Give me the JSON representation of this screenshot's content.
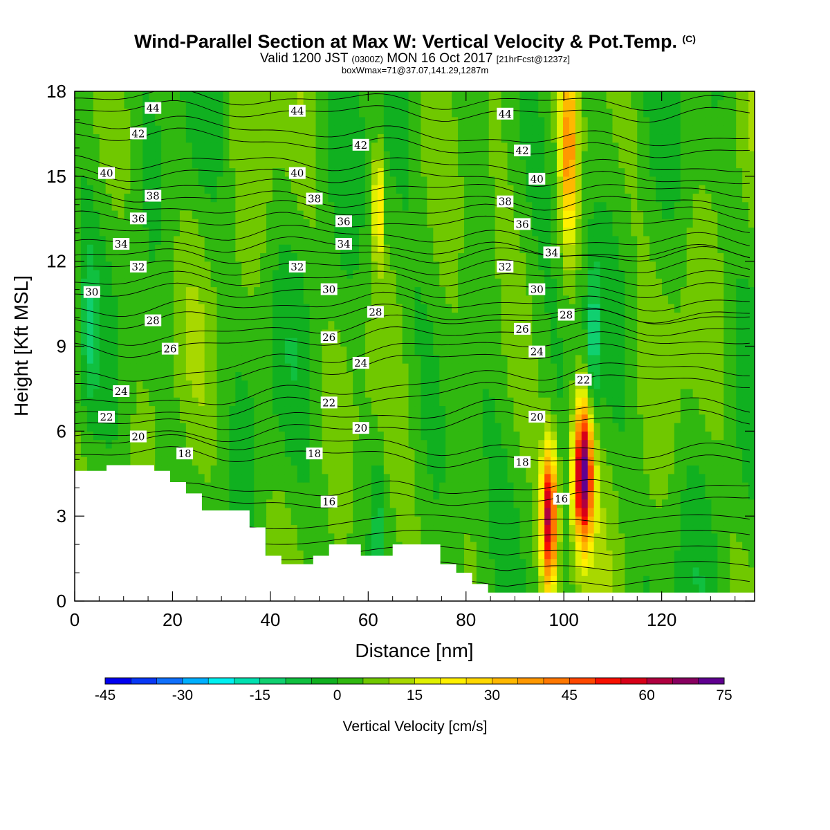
{
  "header": {
    "title": "Wind-Parallel Section at Max W: Vertical Velocity & Pot.Temp.",
    "title_mark": "(C)",
    "valid_prefix": "Valid 1200 JST",
    "valid_utc": "(0300Z)",
    "valid_date": "MON 16 Oct 2017",
    "valid_fcst": "[21hrFcst@1237z]",
    "box_info": "boxWmax=71@37.07,141.29,1287m"
  },
  "chart_data": {
    "type": "heatmap",
    "xlabel": "Distance [nm]",
    "ylabel": "Height [Kft MSL]",
    "xlim": [
      0,
      139
    ],
    "ylim": [
      0,
      18
    ],
    "x_ticks": [
      "0",
      "20",
      "40",
      "60",
      "80",
      "100",
      "120"
    ],
    "y_ticks": [
      "0",
      "3",
      "6",
      "9",
      "12",
      "15",
      "18"
    ],
    "colorbar": {
      "label": "Vertical Velocity [cm/s]",
      "min": -45,
      "max": 75,
      "step": 5,
      "tick_labels": [
        "-45",
        "-30",
        "-15",
        "0",
        "15",
        "30",
        "45",
        "60",
        "75"
      ],
      "colors": [
        "#0000f0",
        "#0838f6",
        "#1070fc",
        "#00b0ff",
        "#00f0f0",
        "#00e0b0",
        "#10d070",
        "#10c040",
        "#10b020",
        "#30b810",
        "#70c800",
        "#a8d800",
        "#e0f000",
        "#fff000",
        "#ffd800",
        "#ffb800",
        "#ff9800",
        "#ff7800",
        "#ff4800",
        "#f81000",
        "#d80018",
        "#b00040",
        "#880060",
        "#600090"
      ]
    },
    "vertical_velocity_features": [
      {
        "x": 97,
        "height": 3.0,
        "max_cm_s": 60,
        "sign": "up"
      },
      {
        "x": 104,
        "height": 4.5,
        "max_cm_s": 71,
        "sign": "up"
      },
      {
        "x": 62,
        "height": 14.0,
        "max_cm_s": 30,
        "sign": "up"
      },
      {
        "x": 101,
        "height": 16.0,
        "max_cm_s": 35,
        "sign": "up"
      },
      {
        "x": 106,
        "height": 9.0,
        "max_cm_s": -15,
        "sign": "down"
      },
      {
        "x": 3,
        "height": 9.5,
        "max_cm_s": -10,
        "sign": "down"
      },
      {
        "x": 62,
        "height": 3.0,
        "max_cm_s": -10,
        "sign": "down"
      }
    ],
    "terrain": {
      "x": [
        0,
        3.25,
        6.5,
        6.5,
        16.25,
        16.25,
        19.5,
        19.5,
        22.75,
        22.75,
        26,
        26,
        29.25,
        29.25,
        35.75,
        35.75,
        39,
        39,
        42.25,
        42.25,
        48.75,
        48.75,
        52,
        52,
        58.5,
        58.5,
        65,
        65,
        74.75,
        74.75,
        78,
        78,
        81.25,
        81.25,
        84.5,
        84.5,
        139
      ],
      "height": [
        4.6,
        4.6,
        4.6,
        4.8,
        4.8,
        4.6,
        4.6,
        4.2,
        4.2,
        3.8,
        3.8,
        3.2,
        3.2,
        3.2,
        3.2,
        2.6,
        2.6,
        1.6,
        1.6,
        1.3,
        1.3,
        1.6,
        1.6,
        2.0,
        2.0,
        1.6,
        1.6,
        2.0,
        2.0,
        1.3,
        1.3,
        1.0,
        1.0,
        0.6,
        0.6,
        0.3,
        0.3
      ]
    },
    "theta_contour_labels": [
      {
        "label": "44",
        "x": 16,
        "y": 17.4
      },
      {
        "label": "44",
        "x": 45.5,
        "y": 17.3
      },
      {
        "label": "44",
        "x": 88,
        "y": 17.2
      },
      {
        "label": "42",
        "x": 13,
        "y": 16.5
      },
      {
        "label": "42",
        "x": 58.5,
        "y": 16.1
      },
      {
        "label": "42",
        "x": 91.5,
        "y": 15.9
      },
      {
        "label": "40",
        "x": 6.5,
        "y": 15.1
      },
      {
        "label": "40",
        "x": 45.5,
        "y": 15.1
      },
      {
        "label": "40",
        "x": 94.5,
        "y": 14.9
      },
      {
        "label": "38",
        "x": 16,
        "y": 14.3
      },
      {
        "label": "38",
        "x": 49,
        "y": 14.2
      },
      {
        "label": "38",
        "x": 88,
        "y": 14.1
      },
      {
        "label": "36",
        "x": 13,
        "y": 13.5
      },
      {
        "label": "36",
        "x": 55,
        "y": 13.4
      },
      {
        "label": "36",
        "x": 91.5,
        "y": 13.3
      },
      {
        "label": "34",
        "x": 9.5,
        "y": 12.6
      },
      {
        "label": "34",
        "x": 55,
        "y": 12.6
      },
      {
        "label": "34",
        "x": 97.5,
        "y": 12.3
      },
      {
        "label": "32",
        "x": 13,
        "y": 11.8
      },
      {
        "label": "32",
        "x": 45.5,
        "y": 11.8
      },
      {
        "label": "32",
        "x": 88,
        "y": 11.8
      },
      {
        "label": "30",
        "x": 3.5,
        "y": 10.9
      },
      {
        "label": "30",
        "x": 52,
        "y": 11.0
      },
      {
        "label": "30",
        "x": 94.5,
        "y": 11.0
      },
      {
        "label": "28",
        "x": 16,
        "y": 9.9
      },
      {
        "label": "28",
        "x": 61.5,
        "y": 10.2
      },
      {
        "label": "28",
        "x": 100.5,
        "y": 10.1
      },
      {
        "label": "26",
        "x": 19.5,
        "y": 8.9
      },
      {
        "label": "26",
        "x": 52,
        "y": 9.3
      },
      {
        "label": "26",
        "x": 91.5,
        "y": 9.6
      },
      {
        "label": "24",
        "x": 9.5,
        "y": 7.4
      },
      {
        "label": "24",
        "x": 58.5,
        "y": 8.4
      },
      {
        "label": "24",
        "x": 94.5,
        "y": 8.8
      },
      {
        "label": "22",
        "x": 6.5,
        "y": 6.5
      },
      {
        "label": "22",
        "x": 52,
        "y": 7.0
      },
      {
        "label": "22",
        "x": 104,
        "y": 7.8
      },
      {
        "label": "20",
        "x": 13,
        "y": 5.8
      },
      {
        "label": "20",
        "x": 58.5,
        "y": 6.1
      },
      {
        "label": "20",
        "x": 94.5,
        "y": 6.5
      },
      {
        "label": "18",
        "x": 22.5,
        "y": 5.2
      },
      {
        "label": "18",
        "x": 49,
        "y": 5.2
      },
      {
        "label": "18",
        "x": 91.5,
        "y": 4.9
      },
      {
        "label": "16",
        "x": 52,
        "y": 3.5
      },
      {
        "label": "16",
        "x": 99.5,
        "y": 3.6
      }
    ]
  }
}
